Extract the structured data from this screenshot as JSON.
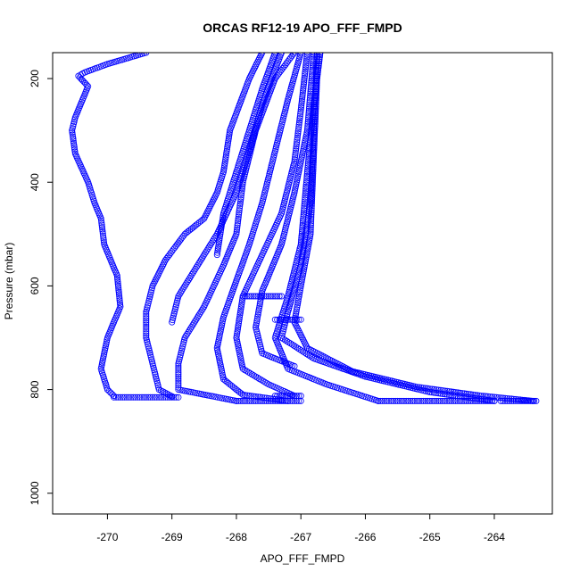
{
  "chart_data": {
    "type": "scatter",
    "title": "ORCAS RF12-19 APO_FFF_FMPD",
    "xlabel": "APO_FFF_FMPD",
    "ylabel": "Pressure (mbar)",
    "xlim": [
      -270.85,
      -263.1
    ],
    "ylim": [
      1040,
      150
    ],
    "y_reversed": true,
    "x_ticks": [
      -270,
      -269,
      -268,
      -267,
      -266,
      -265,
      -264
    ],
    "y_ticks": [
      200,
      400,
      600,
      800,
      1000
    ],
    "grid": false,
    "marker": "open-circle",
    "color": "#0000ff",
    "series": [
      {
        "profile": [
          [
            -269.4,
            150
          ],
          [
            -270.0,
            172
          ],
          [
            -270.35,
            188
          ],
          [
            -270.45,
            195
          ],
          [
            -270.3,
            215
          ],
          [
            -270.5,
            275
          ],
          [
            -270.55,
            300
          ],
          [
            -270.5,
            345
          ],
          [
            -270.3,
            400
          ],
          [
            -270.2,
            440
          ],
          [
            -270.1,
            470
          ],
          [
            -270.05,
            520
          ],
          [
            -269.85,
            580
          ],
          [
            -269.8,
            640
          ],
          [
            -270.0,
            700
          ],
          [
            -270.1,
            760
          ],
          [
            -270.0,
            800
          ],
          [
            -269.9,
            812
          ]
        ]
      },
      {
        "profile": [
          [
            -269.9,
            815
          ],
          [
            -269.6,
            815
          ],
          [
            -269.3,
            815
          ],
          [
            -269.0,
            815
          ],
          [
            -268.9,
            815
          ]
        ]
      },
      {
        "profile": [
          [
            -269.0,
            813
          ],
          [
            -269.2,
            800
          ],
          [
            -269.3,
            750
          ],
          [
            -269.4,
            700
          ],
          [
            -269.4,
            650
          ],
          [
            -269.3,
            600
          ],
          [
            -269.1,
            550
          ],
          [
            -268.8,
            500
          ],
          [
            -268.5,
            470
          ],
          [
            -268.3,
            420
          ],
          [
            -268.2,
            380
          ],
          [
            -268.1,
            300
          ],
          [
            -267.8,
            200
          ],
          [
            -267.6,
            150
          ]
        ]
      },
      {
        "profile": [
          [
            -269.0,
            670
          ],
          [
            -268.9,
            620
          ],
          [
            -268.6,
            560
          ],
          [
            -268.3,
            500
          ],
          [
            -268.0,
            420
          ],
          [
            -267.8,
            340
          ],
          [
            -267.6,
            250
          ],
          [
            -267.3,
            150
          ]
        ]
      },
      {
        "profile": [
          [
            -268.0,
            822
          ],
          [
            -268.9,
            800
          ],
          [
            -268.9,
            750
          ],
          [
            -268.8,
            700
          ],
          [
            -268.5,
            640
          ],
          [
            -268.2,
            560
          ],
          [
            -268.0,
            500
          ],
          [
            -267.9,
            400
          ],
          [
            -267.7,
            300
          ],
          [
            -267.4,
            200
          ],
          [
            -267.1,
            150
          ]
        ]
      },
      {
        "profile": [
          [
            -268.3,
            540
          ],
          [
            -268.2,
            460
          ],
          [
            -268.0,
            380
          ],
          [
            -267.8,
            300
          ],
          [
            -267.6,
            220
          ],
          [
            -267.4,
            150
          ]
        ]
      },
      {
        "profile": [
          [
            -267.2,
            822
          ],
          [
            -267.9,
            810
          ],
          [
            -268.2,
            780
          ],
          [
            -268.3,
            720
          ],
          [
            -268.2,
            660
          ],
          [
            -268.0,
            590
          ],
          [
            -267.8,
            520
          ],
          [
            -267.6,
            440
          ],
          [
            -267.4,
            340
          ],
          [
            -267.2,
            240
          ],
          [
            -267.0,
            150
          ]
        ]
      },
      {
        "profile": [
          [
            -267.1,
            812
          ],
          [
            -267.5,
            790
          ],
          [
            -267.9,
            760
          ],
          [
            -268.0,
            700
          ],
          [
            -267.9,
            620
          ],
          [
            -267.6,
            540
          ],
          [
            -267.3,
            460
          ],
          [
            -267.1,
            360
          ],
          [
            -267.0,
            260
          ],
          [
            -266.9,
            150
          ]
        ]
      },
      {
        "profile": [
          [
            -267.1,
            755
          ],
          [
            -267.6,
            730
          ],
          [
            -267.7,
            680
          ],
          [
            -267.6,
            610
          ],
          [
            -267.3,
            520
          ],
          [
            -267.1,
            420
          ],
          [
            -266.9,
            300
          ],
          [
            -266.8,
            150
          ]
        ]
      },
      {
        "profile": [
          [
            -265.8,
            822
          ],
          [
            -266.6,
            790
          ],
          [
            -267.2,
            760
          ],
          [
            -267.4,
            700
          ],
          [
            -267.2,
            620
          ],
          [
            -267.0,
            520
          ],
          [
            -266.9,
            380
          ],
          [
            -266.8,
            250
          ],
          [
            -266.7,
            150
          ]
        ]
      },
      {
        "profile": [
          [
            -264.0,
            822
          ],
          [
            -265.0,
            805
          ],
          [
            -266.0,
            775
          ],
          [
            -266.8,
            740
          ],
          [
            -267.3,
            700
          ],
          [
            -267.2,
            650
          ],
          [
            -267.0,
            560
          ],
          [
            -266.85,
            440
          ],
          [
            -266.8,
            300
          ],
          [
            -266.75,
            150
          ]
        ]
      },
      {
        "profile": [
          [
            -263.4,
            822
          ],
          [
            -264.2,
            812
          ],
          [
            -265.2,
            795
          ],
          [
            -266.2,
            765
          ],
          [
            -266.9,
            720
          ],
          [
            -267.1,
            670
          ],
          [
            -267.0,
            600
          ],
          [
            -266.85,
            500
          ],
          [
            -266.8,
            350
          ],
          [
            -266.75,
            200
          ],
          [
            -266.7,
            150
          ]
        ]
      },
      {
        "profile": [
          [
            -268.0,
            822
          ],
          [
            -267.6,
            822
          ],
          [
            -267.2,
            822
          ],
          [
            -267.0,
            822
          ]
        ]
      },
      {
        "profile": [
          [
            -267.0,
            812
          ],
          [
            -267.2,
            812
          ],
          [
            -267.4,
            812
          ]
        ]
      },
      {
        "profile": [
          [
            -265.8,
            822
          ],
          [
            -265.0,
            822
          ],
          [
            -264.5,
            822
          ],
          [
            -264.0,
            822
          ]
        ]
      },
      {
        "profile": [
          [
            -263.9,
            822
          ],
          [
            -263.6,
            822
          ],
          [
            -263.35,
            822
          ]
        ]
      },
      {
        "profile": [
          [
            -267.9,
            620
          ],
          [
            -267.7,
            620
          ],
          [
            -267.5,
            620
          ],
          [
            -267.3,
            620
          ]
        ]
      },
      {
        "profile": [
          [
            -267.4,
            665
          ],
          [
            -267.2,
            665
          ],
          [
            -267.0,
            665
          ]
        ]
      }
    ]
  }
}
